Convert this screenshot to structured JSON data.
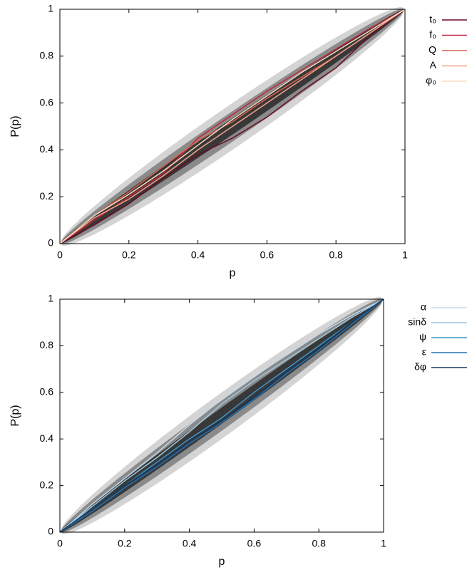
{
  "chart_data": [
    {
      "type": "line",
      "xlabel": "p",
      "ylabel": "P(p)",
      "x": [
        0,
        0.1,
        0.2,
        0.3,
        0.4,
        0.5,
        0.6,
        0.7,
        0.8,
        0.9,
        1
      ],
      "xlim": [
        0,
        1
      ],
      "ylim": [
        0,
        1
      ],
      "xticks": [
        0,
        0.2,
        0.4,
        0.6,
        0.8,
        1
      ],
      "yticks": [
        0,
        0.2,
        0.4,
        0.6,
        0.8,
        1
      ],
      "bands": [
        {
          "color": "#d4d4d4",
          "halfwidth": 0.1
        },
        {
          "color": "#8a8a8a",
          "halfwidth": 0.065
        },
        {
          "color": "#383838",
          "halfwidth": 0.035
        }
      ],
      "series": [
        {
          "name": "t₀",
          "color": "#6b0a22",
          "values": [
            0,
            0.08,
            0.17,
            0.28,
            0.38,
            0.45,
            0.54,
            0.65,
            0.75,
            0.89,
            1
          ]
        },
        {
          "name": "f₀",
          "color": "#c0263a",
          "values": [
            0,
            0.1,
            0.2,
            0.3,
            0.45,
            0.55,
            0.65,
            0.74,
            0.83,
            0.92,
            1
          ]
        },
        {
          "name": "Q",
          "color": "#e0604e",
          "values": [
            0,
            0.12,
            0.22,
            0.33,
            0.44,
            0.52,
            0.62,
            0.71,
            0.8,
            0.9,
            1
          ]
        },
        {
          "name": "A",
          "color": "#f2a288",
          "values": [
            0,
            0.11,
            0.19,
            0.29,
            0.4,
            0.5,
            0.6,
            0.7,
            0.8,
            0.9,
            1
          ]
        },
        {
          "name": "φ₀",
          "color": "#f9dcc2",
          "values": [
            0,
            0.12,
            0.21,
            0.31,
            0.42,
            0.53,
            0.63,
            0.73,
            0.82,
            0.91,
            1
          ]
        }
      ]
    },
    {
      "type": "line",
      "xlabel": "p",
      "ylabel": "P(p)",
      "x": [
        0,
        0.1,
        0.2,
        0.3,
        0.4,
        0.5,
        0.6,
        0.7,
        0.8,
        0.9,
        1
      ],
      "xlim": [
        0,
        1
      ],
      "ylim": [
        0,
        1
      ],
      "xticks": [
        0,
        0.2,
        0.4,
        0.6,
        0.8,
        1
      ],
      "yticks": [
        0,
        0.2,
        0.4,
        0.6,
        0.8,
        1
      ],
      "bands": [
        {
          "color": "#d4d4d4",
          "halfwidth": 0.1
        },
        {
          "color": "#8a8a8a",
          "halfwidth": 0.065
        },
        {
          "color": "#383838",
          "halfwidth": 0.035
        }
      ],
      "series": [
        {
          "name": "α",
          "color": "#c6dbef",
          "values": [
            0,
            0.12,
            0.23,
            0.34,
            0.46,
            0.57,
            0.67,
            0.76,
            0.85,
            0.93,
            1
          ]
        },
        {
          "name": "sinδ",
          "color": "#9ecae1",
          "values": [
            0,
            0.11,
            0.22,
            0.32,
            0.43,
            0.55,
            0.65,
            0.74,
            0.83,
            0.92,
            1
          ]
        },
        {
          "name": "ψ",
          "color": "#4292c6",
          "values": [
            0,
            0.1,
            0.2,
            0.3,
            0.4,
            0.49,
            0.6,
            0.7,
            0.8,
            0.9,
            1
          ]
        },
        {
          "name": "ε",
          "color": "#2171b5",
          "values": [
            0,
            0.09,
            0.19,
            0.28,
            0.38,
            0.47,
            0.57,
            0.68,
            0.78,
            0.89,
            1
          ]
        },
        {
          "name": "δφ",
          "color": "#163a5f",
          "values": [
            0,
            0.1,
            0.2,
            0.29,
            0.39,
            0.48,
            0.58,
            0.69,
            0.79,
            0.9,
            1
          ]
        }
      ]
    }
  ]
}
